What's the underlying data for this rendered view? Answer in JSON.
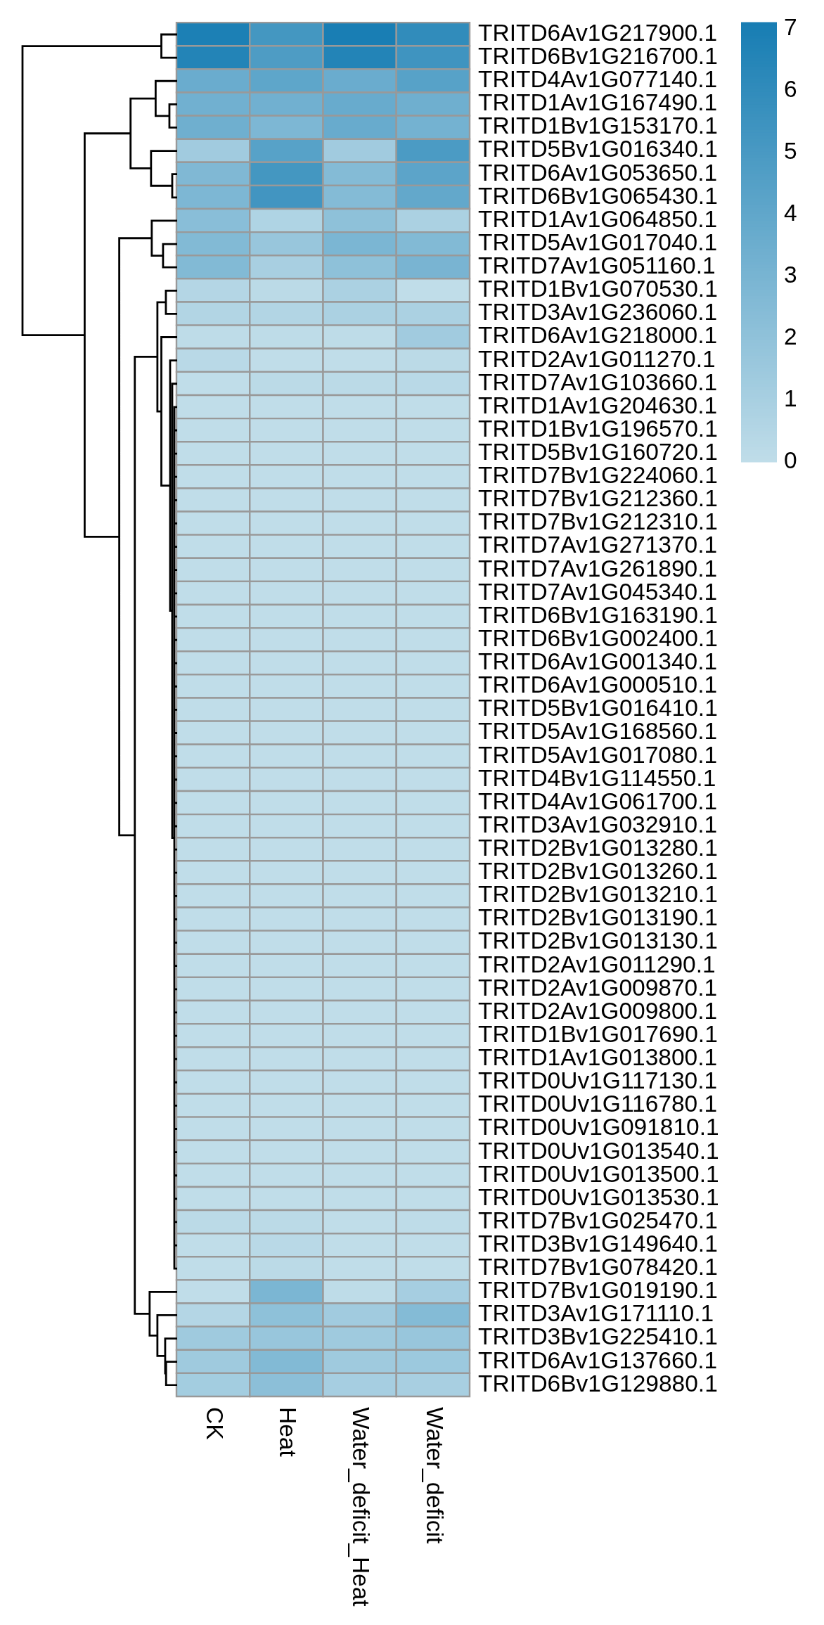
{
  "chart_data": {
    "type": "heatmap",
    "categories": [
      "CK",
      "Heat",
      "Water_deficit_Heat",
      "Water_deficit"
    ],
    "y_categories": [
      "TRITD6Av1G217900.1",
      "TRITD6Bv1G216700.1",
      "TRITD4Av1G077140.1",
      "TRITD1Av1G167490.1",
      "TRITD1Bv1G153170.1",
      "TRITD5Bv1G016340.1",
      "TRITD6Av1G053650.1",
      "TRITD6Bv1G065430.1",
      "TRITD1Av1G064850.1",
      "TRITD5Av1G017040.1",
      "TRITD7Av1G051160.1",
      "TRITD1Bv1G070530.1",
      "TRITD3Av1G236060.1",
      "TRITD6Av1G218000.1",
      "TRITD2Av1G011270.1",
      "TRITD7Av1G103660.1",
      "TRITD1Av1G204630.1",
      "TRITD1Bv1G196570.1",
      "TRITD5Bv1G160720.1",
      "TRITD7Bv1G224060.1",
      "TRITD7Bv1G212360.1",
      "TRITD7Bv1G212310.1",
      "TRITD7Av1G271370.1",
      "TRITD7Av1G261890.1",
      "TRITD7Av1G045340.1",
      "TRITD6Bv1G163190.1",
      "TRITD6Bv1G002400.1",
      "TRITD6Av1G001340.1",
      "TRITD6Av1G000510.1",
      "TRITD5Bv1G016410.1",
      "TRITD5Av1G168560.1",
      "TRITD5Av1G017080.1",
      "TRITD4Bv1G114550.1",
      "TRITD4Av1G061700.1",
      "TRITD3Av1G032910.1",
      "TRITD2Bv1G013280.1",
      "TRITD2Bv1G013260.1",
      "TRITD2Bv1G013210.1",
      "TRITD2Bv1G013190.1",
      "TRITD2Bv1G013130.1",
      "TRITD2Av1G011290.1",
      "TRITD2Av1G009870.1",
      "TRITD2Av1G009800.1",
      "TRITD1Bv1G017690.1",
      "TRITD1Av1G013800.1",
      "TRITD0Uv1G117130.1",
      "TRITD0Uv1G116780.1",
      "TRITD0Uv1G091810.1",
      "TRITD0Uv1G013540.1",
      "TRITD0Uv1G013500.1",
      "TRITD0Uv1G013530.1",
      "TRITD7Bv1G025470.1",
      "TRITD3Bv1G149640.1",
      "TRITD7Bv1G078420.1",
      "TRITD7Bv1G019190.1",
      "TRITD3Av1G171110.1",
      "TRITD3Bv1G225410.1",
      "TRITD6Av1G137660.1",
      "TRITD6Bv1G129880.1"
    ],
    "cells": [
      [
        6.9,
        5.2,
        7.0,
        6.0
      ],
      [
        6.6,
        4.8,
        6.6,
        5.4
      ],
      [
        3.6,
        4.1,
        3.6,
        4.4
      ],
      [
        3.3,
        3.3,
        3.7,
        3.4
      ],
      [
        3.4,
        2.8,
        3.7,
        3.2
      ],
      [
        1.3,
        4.4,
        1.3,
        4.9
      ],
      [
        2.7,
        5.2,
        2.5,
        4.2
      ],
      [
        2.8,
        5.3,
        2.5,
        3.9
      ],
      [
        2.3,
        0.7,
        2.1,
        0.9
      ],
      [
        2.6,
        1.7,
        2.9,
        2.6
      ],
      [
        2.6,
        1.0,
        2.1,
        3.0
      ],
      [
        0.5,
        0.2,
        0.9,
        0.0
      ],
      [
        0.6,
        0.6,
        0.9,
        0.9
      ],
      [
        0.1,
        0.1,
        0.1,
        1.3
      ],
      [
        0.3,
        0.0,
        0.0,
        0.2
      ],
      [
        0.0,
        0.2,
        0.2,
        0.3
      ],
      [
        0,
        0,
        0,
        0
      ],
      [
        0,
        0,
        0,
        0
      ],
      [
        0,
        0,
        0,
        0
      ],
      [
        0,
        0,
        0,
        0
      ],
      [
        0,
        0,
        0,
        0
      ],
      [
        0,
        0,
        0,
        0
      ],
      [
        0,
        0,
        0,
        0
      ],
      [
        0,
        0,
        0,
        0
      ],
      [
        0,
        0,
        0,
        0
      ],
      [
        0,
        0,
        0,
        0
      ],
      [
        0,
        0,
        0,
        0
      ],
      [
        0,
        0,
        0,
        0
      ],
      [
        0,
        0,
        0,
        0
      ],
      [
        0,
        0,
        0,
        0
      ],
      [
        0,
        0,
        0,
        0
      ],
      [
        0,
        0,
        0,
        0
      ],
      [
        0,
        0,
        0,
        0
      ],
      [
        0,
        0,
        0,
        0
      ],
      [
        0,
        0,
        0,
        0
      ],
      [
        0,
        0,
        0,
        0
      ],
      [
        0,
        0,
        0,
        0
      ],
      [
        0,
        0,
        0,
        0
      ],
      [
        0,
        0,
        0,
        0
      ],
      [
        0,
        0,
        0,
        0
      ],
      [
        0,
        0,
        0,
        0
      ],
      [
        0,
        0,
        0,
        0
      ],
      [
        0,
        0,
        0,
        0
      ],
      [
        0,
        0,
        0,
        0
      ],
      [
        0,
        0,
        0,
        0
      ],
      [
        0,
        0,
        0,
        0
      ],
      [
        0,
        0,
        0,
        0
      ],
      [
        0,
        0,
        0,
        0
      ],
      [
        0,
        0,
        0,
        0
      ],
      [
        0,
        0,
        0,
        0
      ],
      [
        0,
        0,
        0,
        0
      ],
      [
        0.2,
        0.2,
        0,
        0.1
      ],
      [
        0,
        0.3,
        0,
        0
      ],
      [
        0,
        0.2,
        0,
        0
      ],
      [
        0.0,
        2.9,
        0.1,
        1.1
      ],
      [
        0.5,
        2.1,
        1.3,
        2.5
      ],
      [
        1.4,
        1.7,
        1.4,
        1.7
      ],
      [
        1.4,
        2.6,
        1.4,
        1.5
      ],
      [
        1.2,
        2.2,
        1.1,
        1.0
      ]
    ],
    "clim": [
      0,
      7.1
    ],
    "cticks": [
      0,
      1,
      2,
      3,
      4,
      5,
      6,
      7
    ],
    "colors": [
      "#c0dde9",
      "#177db3"
    ]
  }
}
